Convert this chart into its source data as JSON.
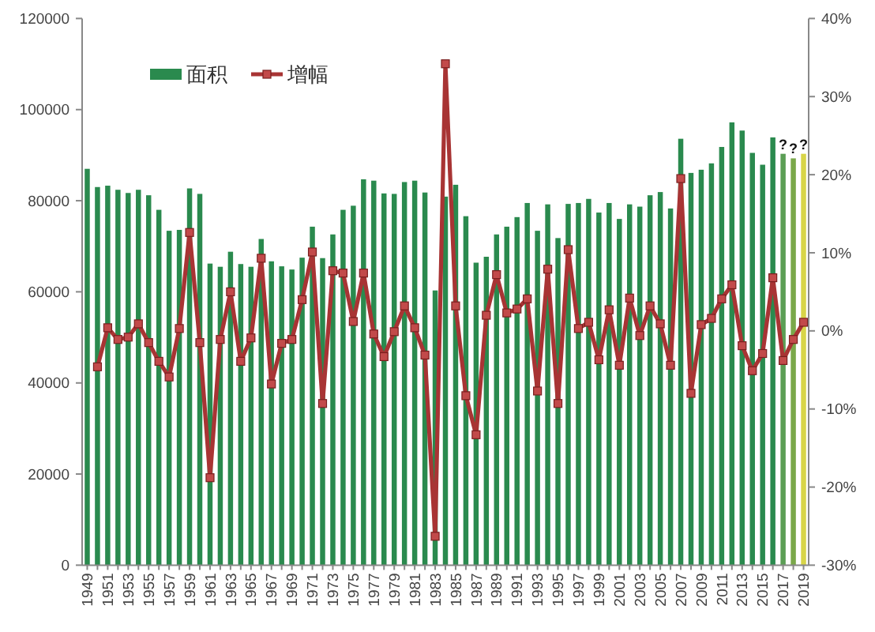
{
  "chart_data": {
    "type": "bar",
    "categories": [
      "1949",
      null,
      "1951",
      null,
      "1953",
      null,
      "1955",
      null,
      "1957",
      null,
      "1959",
      null,
      "1961",
      null,
      "1963",
      null,
      "1965",
      null,
      "1967",
      null,
      "1969",
      null,
      "1971",
      null,
      "1973",
      null,
      "1975",
      null,
      "1977",
      null,
      "1979",
      null,
      "1981",
      null,
      "1983",
      null,
      "1985",
      null,
      "1987",
      null,
      "1989",
      null,
      "1991",
      null,
      "1993",
      null,
      "1995",
      null,
      "1997",
      null,
      "1999",
      null,
      "2001",
      null,
      "2003",
      null,
      "2005",
      null,
      "2007",
      null,
      "2009",
      null,
      "2011",
      null,
      "2013",
      null,
      "2015",
      null,
      "2017",
      null,
      "2019"
    ],
    "series": [
      {
        "name": "面积",
        "color": "#2a8a4e",
        "colors": [
          "#2a8a4e",
          "#2a8a4e",
          "#2a8a4e",
          "#2a8a4e",
          "#2a8a4e",
          "#2a8a4e",
          "#2a8a4e",
          "#2a8a4e",
          "#2a8a4e",
          "#2a8a4e",
          "#2a8a4e",
          "#2a8a4e",
          "#2a8a4e",
          "#2a8a4e",
          "#2a8a4e",
          "#2a8a4e",
          "#2a8a4e",
          "#2a8a4e",
          "#2a8a4e",
          "#2a8a4e",
          "#2a8a4e",
          "#2a8a4e",
          "#2a8a4e",
          "#2a8a4e",
          "#2a8a4e",
          "#2a8a4e",
          "#2a8a4e",
          "#2a8a4e",
          "#2a8a4e",
          "#2a8a4e",
          "#2a8a4e",
          "#2a8a4e",
          "#2a8a4e",
          "#2a8a4e",
          "#2a8a4e",
          "#2a8a4e",
          "#2a8a4e",
          "#2a8a4e",
          "#2a8a4e",
          "#2a8a4e",
          "#2a8a4e",
          "#2a8a4e",
          "#2a8a4e",
          "#2a8a4e",
          "#2a8a4e",
          "#2a8a4e",
          "#2a8a4e",
          "#2a8a4e",
          "#2a8a4e",
          "#2a8a4e",
          "#2a8a4e",
          "#2a8a4e",
          "#2a8a4e",
          "#2a8a4e",
          "#2a8a4e",
          "#2a8a4e",
          "#2a8a4e",
          "#2a8a4e",
          "#2a8a4e",
          "#2a8a4e",
          "#2a8a4e",
          "#2a8a4e",
          "#2a8a4e",
          "#2a8a4e",
          "#2a8a4e",
          "#2a8a4e",
          "#2a8a4e",
          "#2a8a4e",
          "#5b9e55",
          "#7aa84a",
          "#d8d548"
        ],
        "values": [
          87000,
          83000,
          83300,
          82400,
          81700,
          82400,
          81200,
          78000,
          73400,
          73600,
          82700,
          81500,
          66200,
          65500,
          68800,
          66100,
          65500,
          71600,
          66700,
          65600,
          64900,
          67500,
          74300,
          67400,
          72600,
          78000,
          78900,
          84700,
          84400,
          81600,
          81500,
          84100,
          84400,
          81800,
          60300,
          80900,
          83500,
          76600,
          66400,
          67700,
          72600,
          74300,
          76400,
          79500,
          73400,
          79200,
          71800,
          79300,
          79500,
          80400,
          77400,
          79500,
          76000,
          79200,
          78700,
          81200,
          81900,
          78300,
          93600,
          86100,
          86800,
          88200,
          91800,
          97200,
          95400,
          90500,
          87900,
          93900,
          90300,
          89300,
          90300
        ],
        "value_labels": [
          null,
          null,
          null,
          null,
          null,
          null,
          null,
          null,
          null,
          null,
          null,
          null,
          null,
          null,
          null,
          null,
          null,
          null,
          null,
          null,
          null,
          null,
          null,
          null,
          null,
          null,
          null,
          null,
          null,
          null,
          null,
          null,
          null,
          null,
          null,
          null,
          null,
          null,
          null,
          null,
          null,
          null,
          null,
          null,
          null,
          null,
          null,
          null,
          null,
          null,
          null,
          null,
          null,
          null,
          null,
          null,
          null,
          null,
          null,
          null,
          null,
          null,
          null,
          null,
          null,
          null,
          null,
          null,
          "?",
          "?",
          "?"
        ]
      },
      {
        "name": "增幅",
        "type": "line",
        "axis": "y2",
        "color": "#a83434",
        "marker": "square",
        "values": [
          null,
          -4.6,
          0.4,
          -1.1,
          -0.8,
          0.9,
          -1.5,
          -3.9,
          -5.9,
          0.3,
          12.6,
          -1.5,
          -18.8,
          -1.1,
          5,
          -3.9,
          -0.9,
          9.3,
          -6.8,
          -1.6,
          -1.1,
          4,
          10.1,
          -9.3,
          7.7,
          7.4,
          1.2,
          7.4,
          -0.4,
          -3.3,
          -0.1,
          3.2,
          0.4,
          -3.1,
          -26.3,
          34.2,
          3.2,
          -8.3,
          -13.3,
          2,
          7.2,
          2.3,
          2.8,
          4.1,
          -7.7,
          7.9,
          -9.3,
          10.4,
          0.3,
          1.1,
          -3.7,
          2.7,
          -4.4,
          4.2,
          -0.6,
          3.2,
          0.9,
          -4.4,
          19.5,
          -8,
          0.8,
          1.6,
          4.1,
          5.9,
          -1.9,
          -5.1,
          -2.9,
          6.8,
          -3.8,
          -1.1,
          1.1
        ]
      }
    ],
    "ylim": [
      0,
      120000
    ],
    "yticks": [
      0,
      20000,
      40000,
      60000,
      80000,
      100000,
      120000
    ],
    "y2lim": [
      -30,
      40
    ],
    "y2ticks": [
      {
        "value": -30,
        "label": "-30%"
      },
      {
        "value": -20,
        "label": "-20%"
      },
      {
        "value": -10,
        "label": "-10%"
      },
      {
        "value": 0,
        "label": "0%"
      },
      {
        "value": 10,
        "label": "10%"
      },
      {
        "value": 20,
        "label": "20%"
      },
      {
        "value": 30,
        "label": "30%"
      },
      {
        "value": 40,
        "label": "40%"
      }
    ],
    "legend": "top left"
  }
}
